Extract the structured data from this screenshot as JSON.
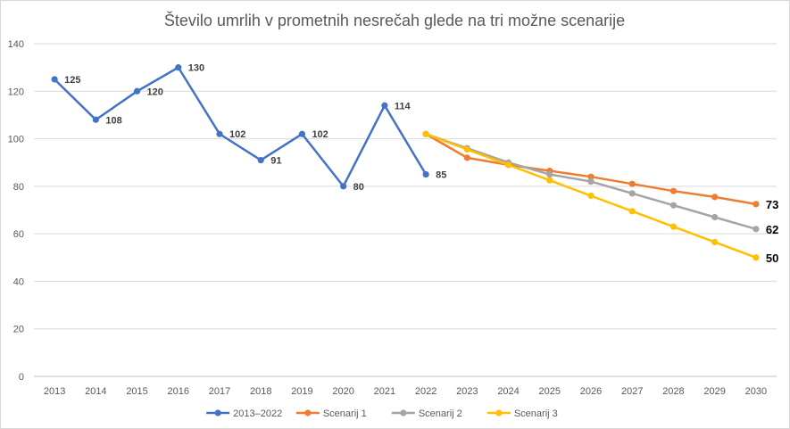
{
  "chart_data": {
    "type": "line",
    "title": "Število umrlih v prometnih nesrečah glede na tri možne scenarije",
    "xlabel": "",
    "ylabel": "",
    "ylim": [
      0,
      140
    ],
    "yticks": [
      0,
      20,
      40,
      60,
      80,
      100,
      120,
      140
    ],
    "categories": [
      "2013",
      "2014",
      "2015",
      "2016",
      "2017",
      "2018",
      "2019",
      "2020",
      "2021",
      "2022",
      "2023",
      "2024",
      "2025",
      "2026",
      "2027",
      "2028",
      "2029",
      "2030"
    ],
    "grid": "horizontal",
    "legend_position": "bottom",
    "series": [
      {
        "name": "2013–2022",
        "color": "#4472c4",
        "values": [
          125,
          108,
          120,
          130,
          102,
          91,
          102,
          80,
          114,
          85,
          null,
          null,
          null,
          null,
          null,
          null,
          null,
          null
        ],
        "labels": [
          "125",
          "108",
          "120",
          "130",
          "102",
          "91",
          "102",
          "80",
          "114",
          "85",
          null,
          null,
          null,
          null,
          null,
          null,
          null,
          null
        ]
      },
      {
        "name": "Scenarij 1",
        "color": "#ed7d31",
        "values": [
          null,
          null,
          null,
          null,
          null,
          null,
          null,
          null,
          null,
          102,
          92,
          89,
          86.5,
          84,
          81,
          78,
          75.5,
          72.5
        ],
        "labels": [
          null,
          null,
          null,
          null,
          null,
          null,
          null,
          null,
          null,
          null,
          null,
          null,
          null,
          null,
          null,
          null,
          null,
          "73"
        ]
      },
      {
        "name": "Scenarij 2",
        "color": "#a5a5a5",
        "values": [
          null,
          null,
          null,
          null,
          null,
          null,
          null,
          null,
          null,
          102,
          96,
          90,
          85,
          82,
          77,
          72,
          67,
          62
        ],
        "labels": [
          null,
          null,
          null,
          null,
          null,
          null,
          null,
          null,
          null,
          null,
          null,
          null,
          null,
          null,
          null,
          null,
          null,
          "62"
        ]
      },
      {
        "name": "Scenarij 3",
        "color": "#ffc000",
        "values": [
          null,
          null,
          null,
          null,
          null,
          null,
          null,
          null,
          null,
          102,
          95.5,
          89,
          82.5,
          76,
          69.5,
          63,
          56.5,
          50
        ],
        "labels": [
          null,
          null,
          null,
          null,
          null,
          null,
          null,
          null,
          null,
          null,
          null,
          null,
          null,
          null,
          null,
          null,
          null,
          "50"
        ]
      }
    ]
  }
}
